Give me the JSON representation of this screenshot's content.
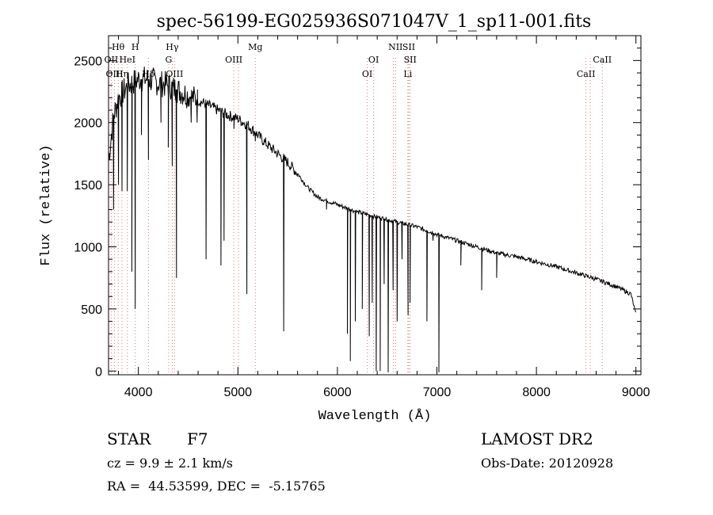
{
  "chart_data": {
    "type": "line",
    "title": "spec-56199-EG025936S071047V_1_sp11-001.fits",
    "xlabel": "Wavelength (Å)",
    "ylabel": "Flux (relative)",
    "xlim": [
      3700,
      9050
    ],
    "ylim": [
      -30,
      2700
    ],
    "x_ticks": [
      4000,
      5000,
      6000,
      7000,
      8000,
      9000
    ],
    "y_ticks": [
      0,
      500,
      1000,
      1500,
      2000,
      2500
    ],
    "grid": false,
    "continuum": [
      [
        3700,
        1700
      ],
      [
        3750,
        2050
      ],
      [
        3800,
        2200
      ],
      [
        3900,
        2300
      ],
      [
        4000,
        2350
      ],
      [
        4100,
        2350
      ],
      [
        4200,
        2320
      ],
      [
        4300,
        2300
      ],
      [
        4400,
        2260
      ],
      [
        4500,
        2220
      ],
      [
        4600,
        2180
      ],
      [
        4700,
        2140
      ],
      [
        4800,
        2100
      ],
      [
        4900,
        2060
      ],
      [
        5000,
        2030
      ],
      [
        5100,
        1980
      ],
      [
        5200,
        1900
      ],
      [
        5300,
        1820
      ],
      [
        5400,
        1750
      ],
      [
        5500,
        1680
      ],
      [
        5600,
        1590
      ],
      [
        5700,
        1480
      ],
      [
        5800,
        1400
      ],
      [
        6000,
        1340
      ],
      [
        6200,
        1280
      ],
      [
        6400,
        1240
      ],
      [
        6600,
        1200
      ],
      [
        6800,
        1160
      ],
      [
        7000,
        1100
      ],
      [
        7200,
        1050
      ],
      [
        7400,
        1000
      ],
      [
        7600,
        950
      ],
      [
        7800,
        920
      ],
      [
        8000,
        880
      ],
      [
        8200,
        840
      ],
      [
        8400,
        790
      ],
      [
        8600,
        740
      ],
      [
        8800,
        680
      ],
      [
        8950,
        620
      ],
      [
        9000,
        450
      ]
    ],
    "absorption": [
      [
        3750,
        1300
      ],
      [
        3800,
        1500
      ],
      [
        3835,
        1450
      ],
      [
        3889,
        1450
      ],
      [
        3934,
        800
      ],
      [
        3968,
        500
      ],
      [
        4030,
        1900
      ],
      [
        4101,
        1700
      ],
      [
        4227,
        2000
      ],
      [
        4300,
        1800
      ],
      [
        4340,
        1650
      ],
      [
        4383,
        750
      ],
      [
        4530,
        2000
      ],
      [
        4590,
        2000
      ],
      [
        4680,
        900
      ],
      [
        4830,
        850
      ],
      [
        4861,
        1050
      ],
      [
        4960,
        1950
      ],
      [
        5090,
        620
      ],
      [
        5175,
        1850
      ],
      [
        5270,
        1850
      ],
      [
        5460,
        320
      ],
      [
        5890,
        1300
      ],
      [
        6100,
        300
      ],
      [
        6130,
        80
      ],
      [
        6180,
        400
      ],
      [
        6250,
        500
      ],
      [
        6320,
        280
      ],
      [
        6350,
        550
      ],
      [
        6390,
        0
      ],
      [
        6430,
        0
      ],
      [
        6470,
        700
      ],
      [
        6510,
        -10
      ],
      [
        6560,
        650
      ],
      [
        6600,
        400
      ],
      [
        6650,
        900
      ],
      [
        6710,
        450
      ],
      [
        6730,
        550
      ],
      [
        6900,
        400
      ],
      [
        6960,
        1050
      ],
      [
        7020,
        -10
      ],
      [
        7240,
        850
      ],
      [
        7450,
        650
      ],
      [
        7600,
        750
      ]
    ],
    "line_markers": [
      {
        "label": "Hθ",
        "x": 3797,
        "row": 0
      },
      {
        "label": "OII",
        "x": 3727,
        "row": 1
      },
      {
        "label": "OIII",
        "x": 3760,
        "row": 2
      },
      {
        "label": "Hη",
        "x": 3835,
        "row": 2
      },
      {
        "label": "H",
        "x": 3968,
        "row": 0
      },
      {
        "label": "HeI",
        "x": 3889,
        "row": 1
      },
      {
        "label": "Hδ",
        "x": 4101,
        "row": 2
      },
      {
        "label": "Hγ",
        "x": 4340,
        "row": 0
      },
      {
        "label": "G",
        "x": 4304,
        "row": 1
      },
      {
        "label": "OIII",
        "x": 4363,
        "row": 2
      },
      {
        "label": "OIII",
        "x": 4959,
        "row": 1
      },
      {
        "label": "Mg",
        "x": 5175,
        "row": 0
      },
      {
        "label": "OI",
        "x": 6364,
        "row": 1
      },
      {
        "label": "OI",
        "x": 6300,
        "row": 2
      },
      {
        "label": "NII",
        "x": 6584,
        "row": 0
      },
      {
        "label": "SII",
        "x": 6717,
        "row": 0
      },
      {
        "label": "SII",
        "x": 6731,
        "row": 1
      },
      {
        "label": "Li",
        "x": 6708,
        "row": 2
      },
      {
        "label": "CaII",
        "x": 8662,
        "row": 1
      },
      {
        "label": "CaII",
        "x": 8498,
        "row": 2
      }
    ],
    "marker_lines_x": [
      3727,
      3760,
      3797,
      3835,
      3889,
      3968,
      4101,
      4304,
      4340,
      4363,
      4959,
      5007,
      5175,
      6300,
      6364,
      6563,
      6584,
      6708,
      6717,
      6731,
      8498,
      8542,
      8662
    ]
  },
  "info": {
    "class_label": "STAR",
    "subclass": "F7",
    "cz": "cz = 9.9 ± 2.1 km/s",
    "coords": "RA =  44.53599, DEC =  -5.15765",
    "survey": "LAMOST DR2",
    "obs_date": "Obs-Date: 20120928"
  }
}
